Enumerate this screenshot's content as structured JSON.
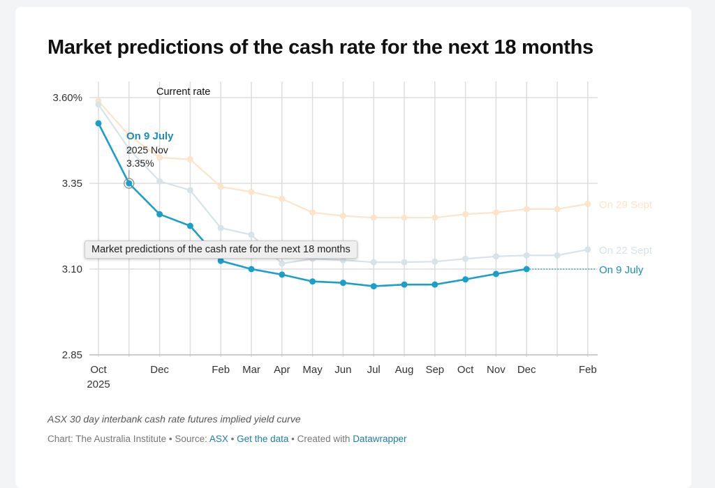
{
  "chart_data": {
    "type": "line",
    "title": "Market predictions of the cash rate for the next 18 months",
    "categories": [
      "Oct 2025",
      "Nov 2025",
      "Dec 2025",
      "Jan 2026",
      "Feb 2026",
      "Mar 2026",
      "Apr 2026",
      "May 2026",
      "Jun 2026",
      "Jul 2026",
      "Aug 2026",
      "Sep 2026",
      "Oct 2026",
      "Nov 2026",
      "Dec 2026",
      "Jan 2027",
      "Feb 2027"
    ],
    "x_tick_labels": [
      "Oct",
      "",
      "Dec",
      "",
      "Feb",
      "Mar",
      "Apr",
      "May",
      "Jun",
      "Jul",
      "Aug",
      "Sep",
      "Oct",
      "Nov",
      "Dec",
      "",
      "Feb"
    ],
    "x_tick_sub": "2025",
    "y_ticks": [
      3.6,
      3.35,
      3.1,
      2.85
    ],
    "y_tick_labels": [
      "3.60%",
      "3.35",
      "3.10",
      "2.85"
    ],
    "ylim": [
      2.85,
      3.62
    ],
    "grid": true,
    "series": [
      {
        "name": "On 29 Sept",
        "color": "#fde4c8",
        "values": [
          3.59,
          3.49,
          3.425,
          3.42,
          3.34,
          3.325,
          3.305,
          3.265,
          3.255,
          3.25,
          3.25,
          3.25,
          3.26,
          3.265,
          3.275,
          3.275,
          3.29
        ]
      },
      {
        "name": "On 22 Sept",
        "color": "#d6e3e8",
        "values": [
          3.58,
          3.45,
          3.356,
          3.33,
          3.22,
          3.2,
          3.116,
          3.13,
          3.126,
          3.12,
          3.12,
          3.122,
          3.13,
          3.137,
          3.14,
          3.14,
          3.157
        ]
      },
      {
        "name": "On 9 July",
        "color": "#1a9fcb",
        "values": [
          3.525,
          3.35,
          3.26,
          3.226,
          3.124,
          3.1,
          3.084,
          3.064,
          3.06,
          3.05,
          3.055,
          3.055,
          3.07,
          3.086,
          3.1,
          null,
          null
        ]
      }
    ],
    "annotations": {
      "current_rate": "Current rate",
      "hover_series": "On 9 July",
      "hover_label": "2025 Nov",
      "hover_value": "3.35%"
    }
  },
  "tooltip": "Market predictions of the cash rate for the next 18 months",
  "note": "ASX 30 day interbank cash rate futures implied yield curve",
  "footer": {
    "chart_by": "Chart: The Australia Institute",
    "sep1": " • Source: ",
    "source": "ASX",
    "sep2": " • ",
    "get_data": "Get the data",
    "sep3": " • Created with ",
    "tool": "Datawrapper"
  }
}
